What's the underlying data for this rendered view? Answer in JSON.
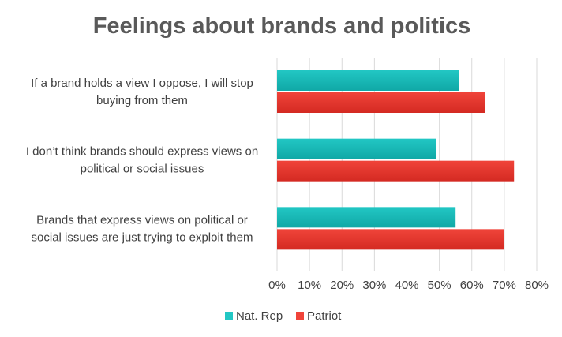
{
  "chart_data": {
    "type": "bar",
    "orientation": "horizontal",
    "title": "Feelings about brands and politics",
    "categories": [
      [
        "If a brand holds a view I oppose, I will stop",
        "buying from them"
      ],
      [
        "I don’t think brands should express views on",
        "political or social issues"
      ],
      [
        "Brands that express views on political or",
        "social issues are just trying to exploit them"
      ]
    ],
    "series": [
      {
        "name": "Nat. Rep",
        "color": "#22c7c4",
        "color_dark": "#10a8a6",
        "values": [
          56,
          49,
          55
        ]
      },
      {
        "name": "Patriot",
        "color": "#f0443a",
        "color_dark": "#d42a22",
        "values": [
          64,
          73,
          70
        ]
      }
    ],
    "xlim": [
      0,
      80
    ],
    "xticks": [
      "0%",
      "10%",
      "20%",
      "30%",
      "40%",
      "50%",
      "60%",
      "70%",
      "80%"
    ],
    "grid": true,
    "legend_position": "bottom"
  }
}
